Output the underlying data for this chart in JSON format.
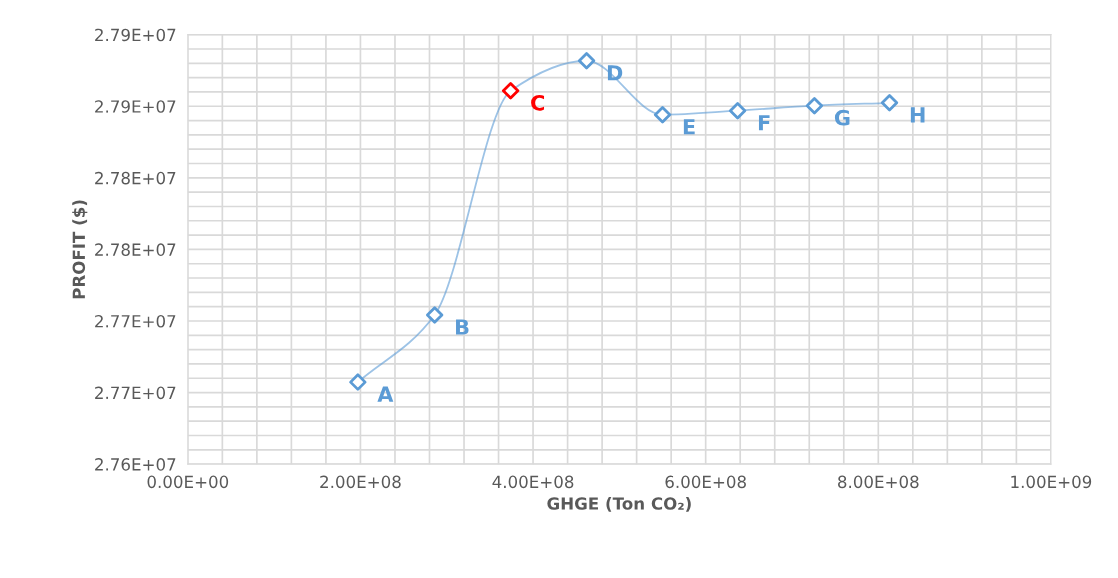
{
  "chart_data": {
    "type": "line",
    "xlabel": "GHGE (Ton CO₂)",
    "ylabel": "PROFIT ($)",
    "x": [
      197000000,
      286000000,
      374000000,
      462000000,
      550000000,
      637000000,
      726000000,
      813000000
    ],
    "series": [
      {
        "color": "#5b9bd5",
        "colors": [
          "#5b9bd5",
          "#5b9bd5",
          "#ff0000",
          "#5b9bd5",
          "#5b9bd5",
          "#5b9bd5",
          "#5b9bd5",
          "#5b9bd5"
        ],
        "values": [
          27657300,
          27704200,
          27860800,
          27881800,
          27844100,
          27846900,
          27850400,
          27852400
        ]
      }
    ],
    "annotations": [
      {
        "text": "A",
        "x": 197000000,
        "y": 27657300
      },
      {
        "text": "B",
        "x": 286000000,
        "y": 27704200
      },
      {
        "text": "C",
        "x": 374000000,
        "y": 27860800
      },
      {
        "text": "D",
        "x": 462000000,
        "y": 27881800
      },
      {
        "text": "E",
        "x": 550000000,
        "y": 27844100
      },
      {
        "text": "F",
        "x": 637000000,
        "y": 27846900
      },
      {
        "text": "G",
        "x": 726000000,
        "y": 27850400
      },
      {
        "text": "H",
        "x": 813000000,
        "y": 27852400
      }
    ],
    "marker": "diamond",
    "grid": true,
    "xlim": [
      0,
      1000000000
    ],
    "ylim": [
      27600000,
      27900000
    ],
    "xticks": [
      {
        "value": 0,
        "label": "0.00E+00"
      },
      {
        "value": 200000000,
        "label": "2.00E+08"
      },
      {
        "value": 400000000,
        "label": "4.00E+08"
      },
      {
        "value": 600000000,
        "label": "6.00E+08"
      },
      {
        "value": 800000000,
        "label": "8.00E+08"
      },
      {
        "value": 1000000000,
        "label": "1.00E+09"
      }
    ],
    "yticks": [
      {
        "value": 27600000,
        "label": "2.76E+07"
      },
      {
        "value": 27650000,
        "label": "2.77E+07"
      },
      {
        "value": 27700000,
        "label": "2.77E+07"
      },
      {
        "value": 27750000,
        "label": "2.78E+07"
      },
      {
        "value": 27800000,
        "label": "2.78E+07"
      },
      {
        "value": 27850000,
        "label": "2.79E+07"
      },
      {
        "value": 27900000,
        "label": "2.79E+07"
      }
    ]
  }
}
